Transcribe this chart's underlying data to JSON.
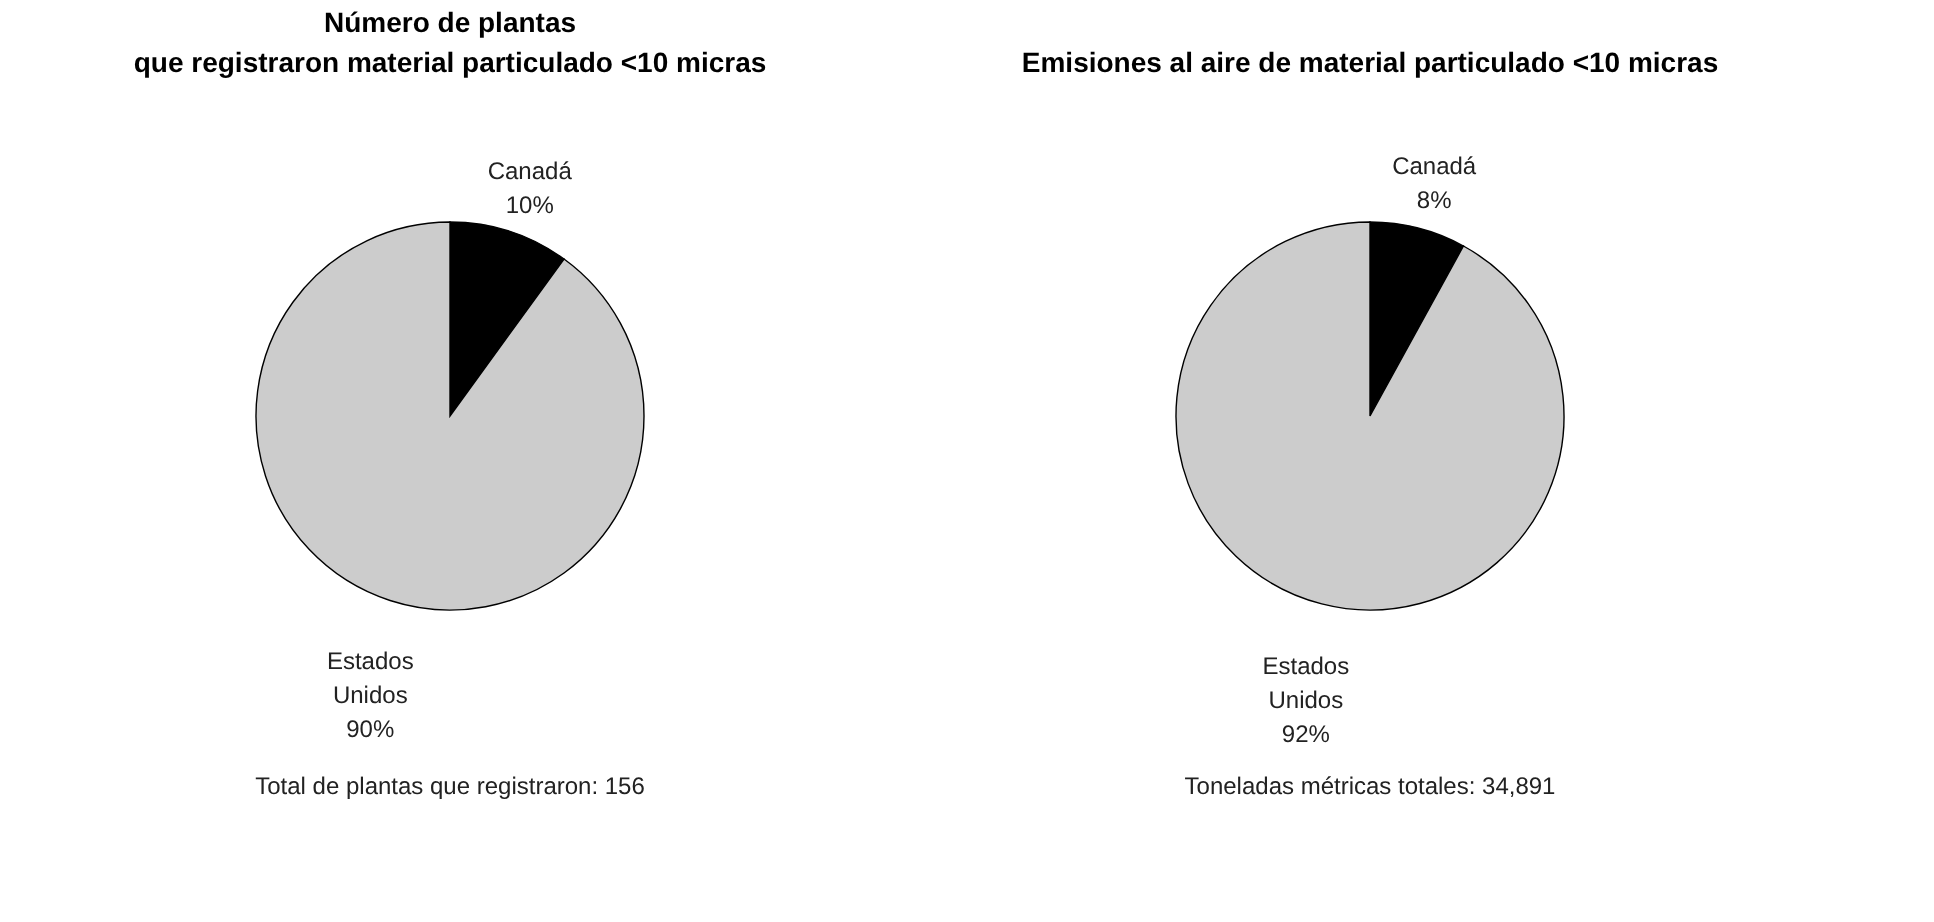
{
  "chart_data": [
    {
      "type": "pie",
      "title": "Número de plantas\nque registraron material particulado <10 micras",
      "categories": [
        "Canadá",
        "Estados Unidos"
      ],
      "values": [
        10,
        90
      ],
      "colors": [
        "#000000",
        "#cccccc"
      ],
      "value_labels": [
        "10%",
        "90%"
      ],
      "annotations": [
        "Total de plantas que registraron: 156"
      ]
    },
    {
      "type": "pie",
      "title": "Emisiones al aire de material particulado <10 micras",
      "categories": [
        "Canadá",
        "Estados Unidos"
      ],
      "values": [
        8,
        92
      ],
      "colors": [
        "#000000",
        "#cccccc"
      ],
      "value_labels": [
        "8%",
        "92%"
      ],
      "annotations": [
        "Toneladas métricas totales: 34,891"
      ]
    }
  ]
}
